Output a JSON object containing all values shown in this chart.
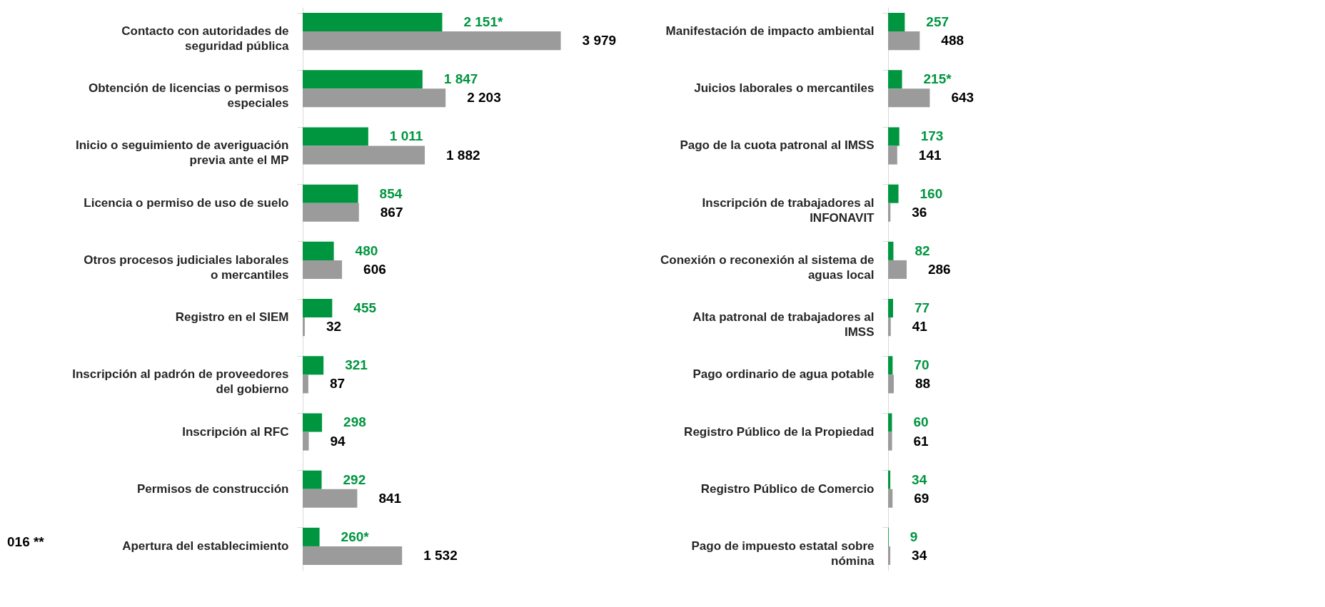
{
  "chart_data": [
    {
      "type": "bar",
      "orientation": "horizontal",
      "annotations": [
        "016 **"
      ],
      "categories": [
        "Contacto con autoridades de seguridad pública",
        "Obtención de licencias o permisos especiales",
        "Inicio o seguimiento de averiguación previa ante el MP",
        "Licencia o permiso de uso de suelo",
        "Otros procesos judiciales laborales o mercantiles",
        "Registro en el SIEM",
        "Inscripción al padrón de proveedores del gobierno",
        "Inscripción al RFC",
        "Permisos de construcción",
        "Apertura del establecimiento"
      ],
      "series": [
        {
          "color": "#009640",
          "values": [
            2151,
            1847,
            1011,
            854,
            480,
            455,
            321,
            298,
            292,
            260
          ],
          "value_labels": [
            "2 151*",
            "1 847",
            "1 011",
            "854",
            "480",
            "455",
            "321",
            "298",
            "292",
            "260*"
          ]
        },
        {
          "color": "#9b9b9b",
          "values": [
            3979,
            2203,
            1882,
            867,
            606,
            32,
            87,
            94,
            841,
            1532
          ],
          "value_labels": [
            "3 979",
            "2 203",
            "1 882",
            "867",
            "606",
            "32",
            "87",
            "94",
            "841",
            "1 532"
          ]
        }
      ]
    },
    {
      "type": "bar",
      "orientation": "horizontal",
      "categories": [
        "Manifestación de impacto ambiental",
        "Juicios laborales o mercantiles",
        "Pago de la cuota patronal al IMSS",
        "Inscripción de trabajadores al INFONAVIT",
        "Conexión o reconexión al sistema de aguas local",
        "Alta patronal de trabajadores al IMSS",
        "Pago ordinario de agua potable",
        "Registro Público de la Propiedad",
        "Registro Público de Comercio",
        "Pago de impuesto estatal sobre nómina"
      ],
      "series": [
        {
          "color": "#009640",
          "values": [
            257,
            215,
            173,
            160,
            82,
            77,
            70,
            60,
            34,
            9
          ],
          "value_labels": [
            "257",
            "215*",
            "173",
            "160",
            "82",
            "77",
            "70",
            "60",
            "34",
            "9"
          ]
        },
        {
          "color": "#9b9b9b",
          "values": [
            488,
            643,
            141,
            36,
            286,
            41,
            88,
            61,
            69,
            34
          ],
          "value_labels": [
            "488",
            "643",
            "141",
            "36",
            "286",
            "41",
            "88",
            "61",
            "69",
            "34"
          ]
        }
      ]
    }
  ]
}
